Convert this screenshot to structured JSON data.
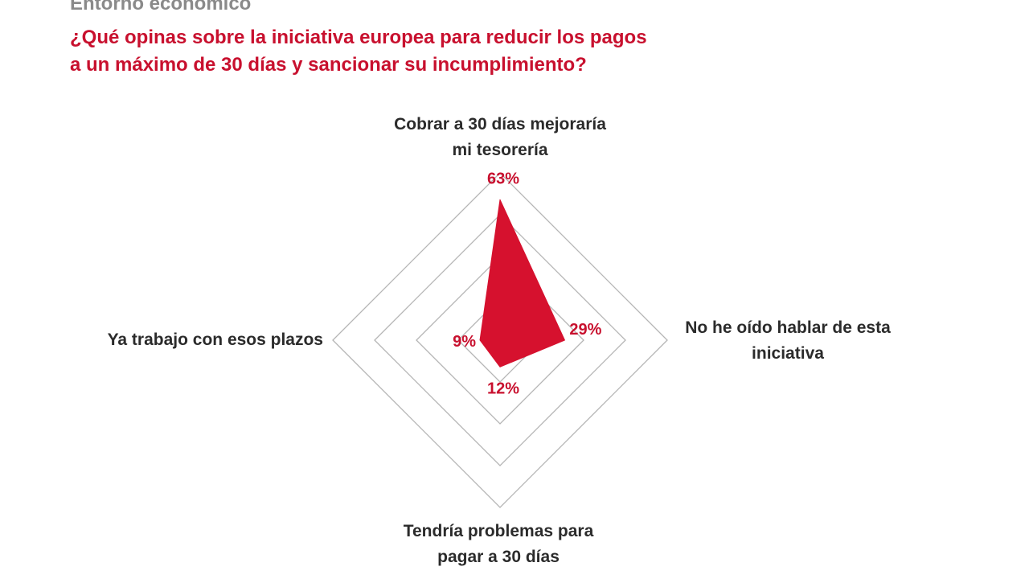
{
  "header": {
    "section": "Entorno económico",
    "title_lines": [
      "¿Qué opinas sobre la iniciativa europea para reducir los pagos",
      "a un máximo de 30 días y sancionar su incumplimiento?"
    ]
  },
  "chart_data": {
    "type": "radar",
    "title": "¿Qué opinas sobre la iniciativa europea para reducir los pagos a un máximo de 30 días y sancionar su incumplimiento?",
    "unit": "%",
    "max": 75,
    "rings": 4,
    "axes": [
      {
        "label_lines": [
          "Cobrar a 30 días mejoraría",
          "mi tesorería"
        ],
        "value": 63,
        "value_label": "63%"
      },
      {
        "label_lines": [
          "No he oído hablar de esta",
          "iniciativa"
        ],
        "value": 29,
        "value_label": "29%"
      },
      {
        "label_lines": [
          "Tendría problemas para",
          "pagar a 30 días"
        ],
        "value": 12,
        "value_label": "12%"
      },
      {
        "label_lines": [
          "Ya trabajo con esos plazos"
        ],
        "value": 9,
        "value_label": "9%"
      }
    ],
    "colors": {
      "fill": "#d6112e",
      "grid": "#b5b5b5",
      "value_text": "#c8102e",
      "axis_text": "#2b2b2b"
    }
  }
}
